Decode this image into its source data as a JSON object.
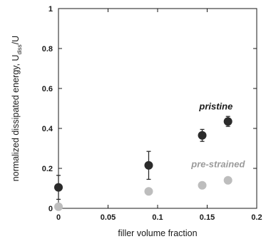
{
  "chart_data": {
    "type": "scatter",
    "xlabel": "filler volume fraction",
    "ylabel": "normalized dissipated energy, U",
    "ylabel_sub": "diss",
    "ylabel_tail": "/U",
    "xlim": [
      0,
      0.2
    ],
    "ylim": [
      0,
      1
    ],
    "x_ticks": [
      "0",
      "0.05",
      "0.1",
      "0.15",
      "0.2"
    ],
    "y_ticks": [
      "0",
      "0.2",
      "0.4",
      "0.6",
      "0.8",
      "1"
    ],
    "x_tick_values": [
      0,
      0.05,
      0.1,
      0.15,
      0.2
    ],
    "y_tick_values": [
      0,
      0.2,
      0.4,
      0.6,
      0.8,
      1
    ],
    "grid": false,
    "series": [
      {
        "name": "pristine",
        "color": "#2b2b2b",
        "points": [
          {
            "x": 0.0,
            "y": 0.105,
            "err": 0.06
          },
          {
            "x": 0.091,
            "y": 0.215,
            "err": 0.07
          },
          {
            "x": 0.145,
            "y": 0.365,
            "err": 0.03
          },
          {
            "x": 0.171,
            "y": 0.435,
            "err": 0.025
          }
        ]
      },
      {
        "name": "pre-strained",
        "color": "#bdbdbd",
        "points": [
          {
            "x": 0.0,
            "y": 0.008,
            "err": 0
          },
          {
            "x": 0.091,
            "y": 0.085,
            "err": 0
          },
          {
            "x": 0.145,
            "y": 0.115,
            "err": 0
          },
          {
            "x": 0.171,
            "y": 0.14,
            "err": 0
          }
        ]
      }
    ],
    "annotations": [
      {
        "text": "pristine",
        "x": 0.142,
        "y": 0.495,
        "color": "#1a1a1a"
      },
      {
        "text": "pre-strained",
        "x": 0.134,
        "y": 0.205,
        "color": "#9a9a9a"
      }
    ]
  }
}
